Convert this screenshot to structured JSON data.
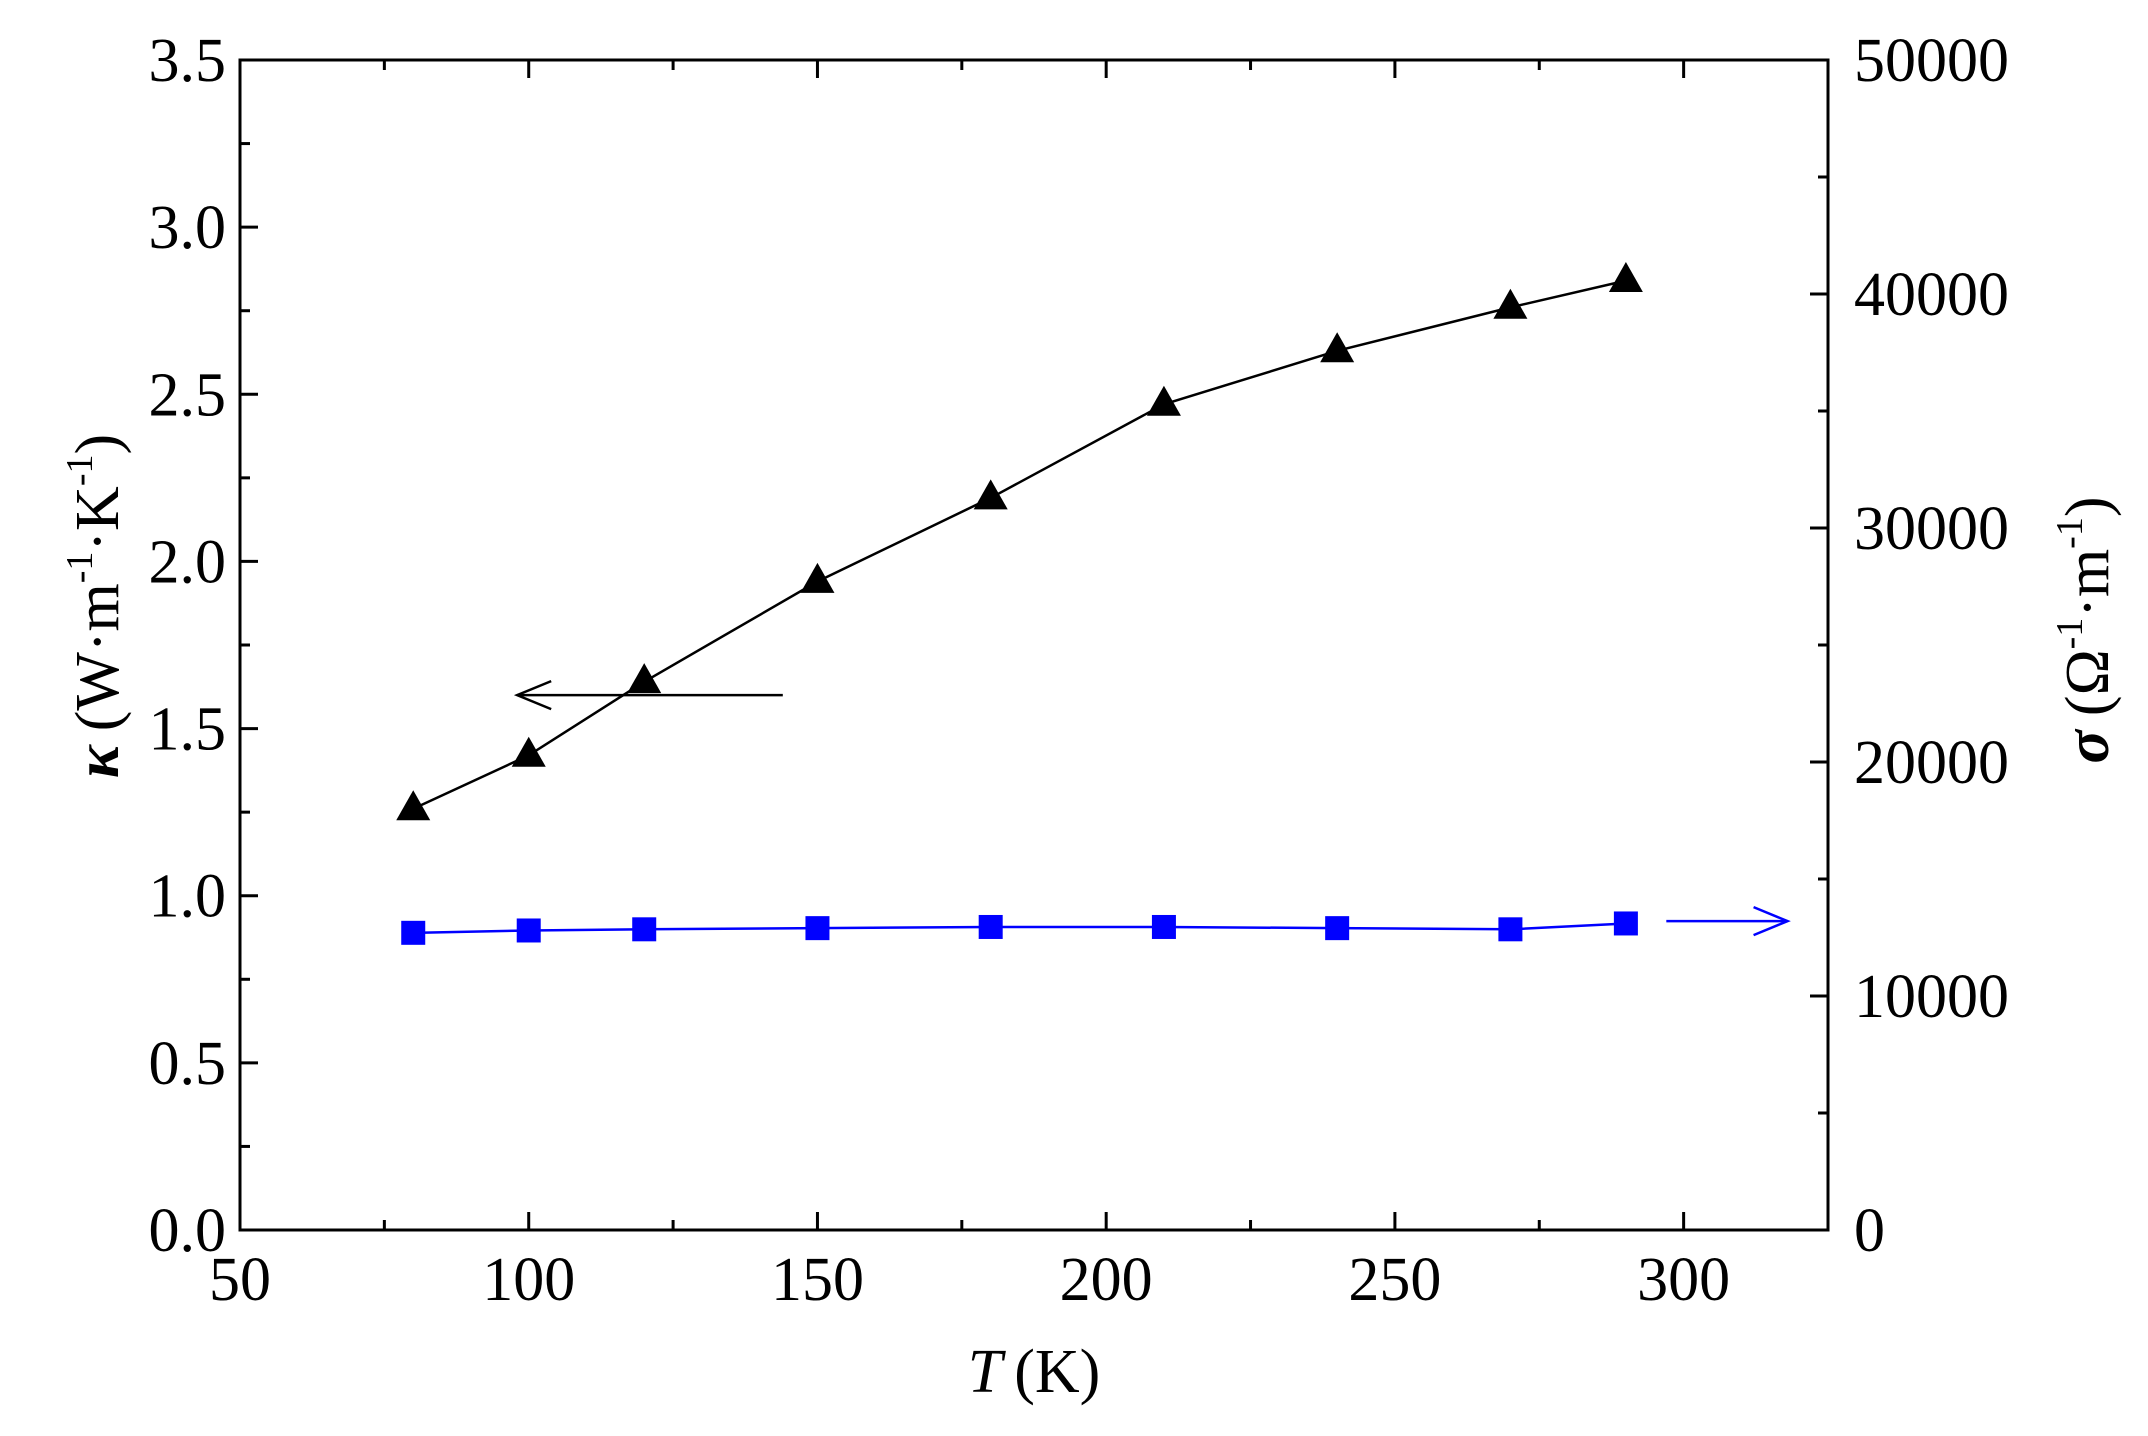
{
  "chart_data": {
    "type": "line",
    "title": "",
    "xlabel": {
      "symbol": "T",
      "unit": "(K)"
    },
    "ylabel_left": {
      "symbol": "κ",
      "open": "(W·m",
      "exp1": "-1",
      "mid": "·K",
      "exp2": "-1",
      "close": ")"
    },
    "ylabel_right": {
      "symbol": "σ",
      "open": "(Ω",
      "exp1": "-1",
      "mid": "·m",
      "exp2": "-1",
      "close": ")"
    },
    "xlim": [
      50,
      325
    ],
    "ylim_left": [
      0,
      3.5
    ],
    "ylim_right": [
      0,
      50000
    ],
    "x_ticks": [
      "50",
      "100",
      "150",
      "200",
      "250",
      "300"
    ],
    "y_left_ticks": [
      "0.0",
      "0.5",
      "1.0",
      "1.5",
      "2.0",
      "2.5",
      "3.0",
      "3.5"
    ],
    "y_right_ticks": [
      "0",
      "10000",
      "20000",
      "30000",
      "40000",
      "50000"
    ],
    "grid": false,
    "series": [
      {
        "axis": "left",
        "marker": "triangle",
        "color": "#000000",
        "x": [
          80,
          100,
          120,
          150,
          180,
          210,
          240,
          270,
          290
        ],
        "values": [
          1.26,
          1.42,
          1.64,
          1.94,
          2.19,
          2.47,
          2.63,
          2.76,
          2.84
        ]
      },
      {
        "axis": "right",
        "marker": "square",
        "color": "#0000ff",
        "x": [
          80,
          100,
          120,
          150,
          180,
          210,
          240,
          270,
          290
        ],
        "values": [
          12700,
          12800,
          12850,
          12900,
          12950,
          12950,
          12900,
          12850,
          13100
        ]
      }
    ],
    "annotations": [
      {
        "type": "arrow",
        "direction": "left",
        "points_to": "left axis",
        "color": "#000000"
      },
      {
        "type": "arrow",
        "direction": "right",
        "points_to": "right axis",
        "color": "#0000ff"
      }
    ]
  }
}
